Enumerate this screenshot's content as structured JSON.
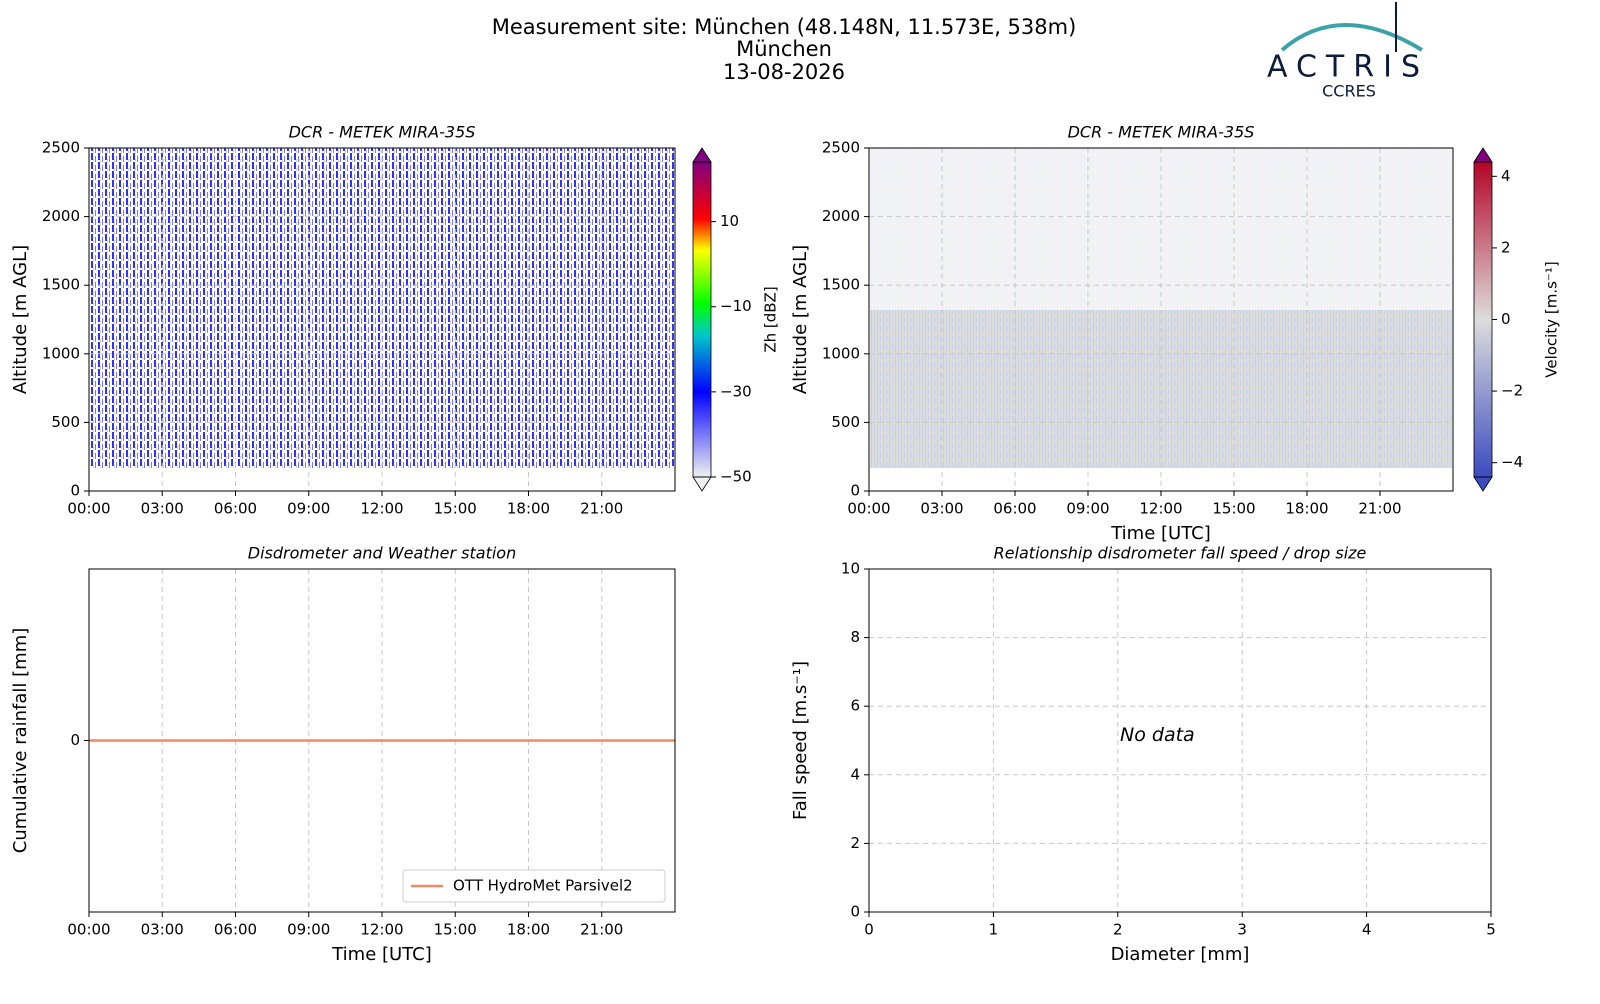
{
  "header": {
    "title": "Measurement site: München (48.148N, 11.573E, 538m)",
    "site": "München",
    "date": "13-08-2026"
  },
  "logo": {
    "name": "ACTRIS",
    "sub": "CCRES"
  },
  "chart_data": [
    {
      "type": "heatmap",
      "title": "DCR - METEK MIRA-35S",
      "ylabel": "Altitude [m AGL]",
      "xlim": [
        0,
        24
      ],
      "xticks": [
        {
          "value": 0,
          "label": "00:00"
        },
        {
          "value": 3,
          "label": "03:00"
        },
        {
          "value": 6,
          "label": "06:00"
        },
        {
          "value": 9,
          "label": "09:00"
        },
        {
          "value": 12,
          "label": "12:00"
        },
        {
          "value": 15,
          "label": "15:00"
        },
        {
          "value": 18,
          "label": "18:00"
        },
        {
          "value": 21,
          "label": "21:00"
        }
      ],
      "ylim": [
        0,
        2500
      ],
      "yticks": [
        0,
        500,
        1000,
        1500,
        2000,
        2500
      ],
      "grid": true,
      "colorbar": {
        "label": "Zh [dBZ]",
        "lim": [
          -50,
          24
        ],
        "ticks": [
          {
            "value": -50,
            "label": "−50"
          },
          {
            "value": -30,
            "label": "−30"
          },
          {
            "value": -10,
            "label": "−10"
          },
          10
        ],
        "colormap": "reflectivity"
      }
    },
    {
      "type": "heatmap",
      "title": "DCR - METEK MIRA-35S",
      "ylabel": "Altitude [m AGL]",
      "xlabel": "Time [UTC]",
      "xlim": [
        0,
        24
      ],
      "xticks": [
        {
          "value": 0,
          "label": "00:00"
        },
        {
          "value": 3,
          "label": "03:00"
        },
        {
          "value": 6,
          "label": "06:00"
        },
        {
          "value": 9,
          "label": "09:00"
        },
        {
          "value": 12,
          "label": "12:00"
        },
        {
          "value": 15,
          "label": "15:00"
        },
        {
          "value": 18,
          "label": "18:00"
        },
        {
          "value": 21,
          "label": "21:00"
        }
      ],
      "ylim": [
        0,
        2500
      ],
      "yticks": [
        0,
        500,
        1000,
        1500,
        2000,
        2500
      ],
      "grid": true,
      "colorbar": {
        "label": "Velocity [m.s⁻¹]",
        "lim": [
          -4.4,
          4.4
        ],
        "ticks": [
          {
            "value": -4,
            "label": "−4"
          },
          {
            "value": -2,
            "label": "−2"
          },
          0,
          2,
          4
        ],
        "colormap": "velocity"
      }
    },
    {
      "type": "line",
      "title": "Disdrometer and Weather station",
      "ylabel": "Cumulative rainfall [mm]",
      "xlabel": "Time [UTC]",
      "xlim": [
        0,
        24
      ],
      "xticks": [
        {
          "value": 0,
          "label": "00:00"
        },
        {
          "value": 3,
          "label": "03:00"
        },
        {
          "value": 6,
          "label": "06:00"
        },
        {
          "value": 9,
          "label": "09:00"
        },
        {
          "value": 12,
          "label": "12:00"
        },
        {
          "value": 15,
          "label": "15:00"
        },
        {
          "value": 18,
          "label": "18:00"
        },
        {
          "value": 21,
          "label": "21:00"
        }
      ],
      "ylim": [
        -0.055,
        0.055
      ],
      "yticks": [
        0
      ],
      "grid": true,
      "legend": "lower right",
      "x": [
        0,
        24
      ],
      "series": [
        {
          "name": "OTT HydroMet Parsivel2",
          "color": "#ef8a62",
          "values": [
            0,
            0
          ]
        }
      ]
    },
    {
      "type": "scatter",
      "title": "Relationship disdrometer fall speed / drop size",
      "ylabel": "Fall speed [m.s⁻¹]",
      "xlabel": "Diameter [mm]",
      "xlim": [
        0,
        5
      ],
      "xticks": [
        0,
        1,
        2,
        3,
        4,
        5
      ],
      "ylim": [
        0,
        10
      ],
      "yticks": [
        0,
        2,
        4,
        6,
        8,
        10
      ],
      "grid": true,
      "annotation": "No data"
    }
  ]
}
